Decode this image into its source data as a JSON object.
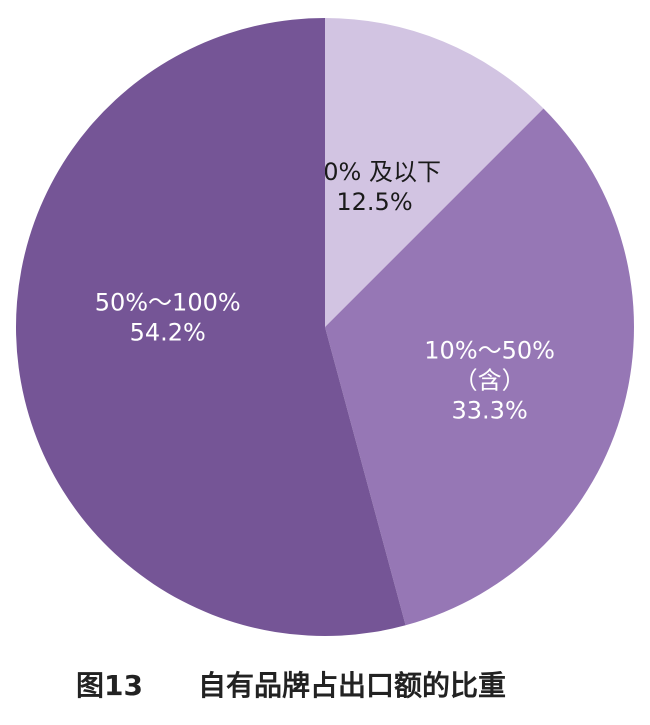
{
  "chart_data": {
    "type": "pie",
    "start_angle": "12 o'clock",
    "direction": "clockwise",
    "slices": [
      {
        "label_lines": [
          "10% 及以下",
          "12.5%"
        ],
        "category": "10% 及以下",
        "value": 12.5,
        "color": "#d2c4e2",
        "label_color": "#1a1a1a"
      },
      {
        "label_lines": [
          "10%～50%",
          "（含）",
          "33.3%"
        ],
        "category": "10%～50%（含）",
        "value": 33.3,
        "color": "#9677b5",
        "label_color": "#ffffff"
      },
      {
        "label_lines": [
          "50%～100%",
          "54.2%"
        ],
        "category": "50%～100%",
        "value": 54.2,
        "color": "#755596",
        "label_color": "#ffffff"
      }
    ]
  },
  "caption": {
    "figure_number": "图13",
    "title": "自有品牌占出口额的比重"
  }
}
